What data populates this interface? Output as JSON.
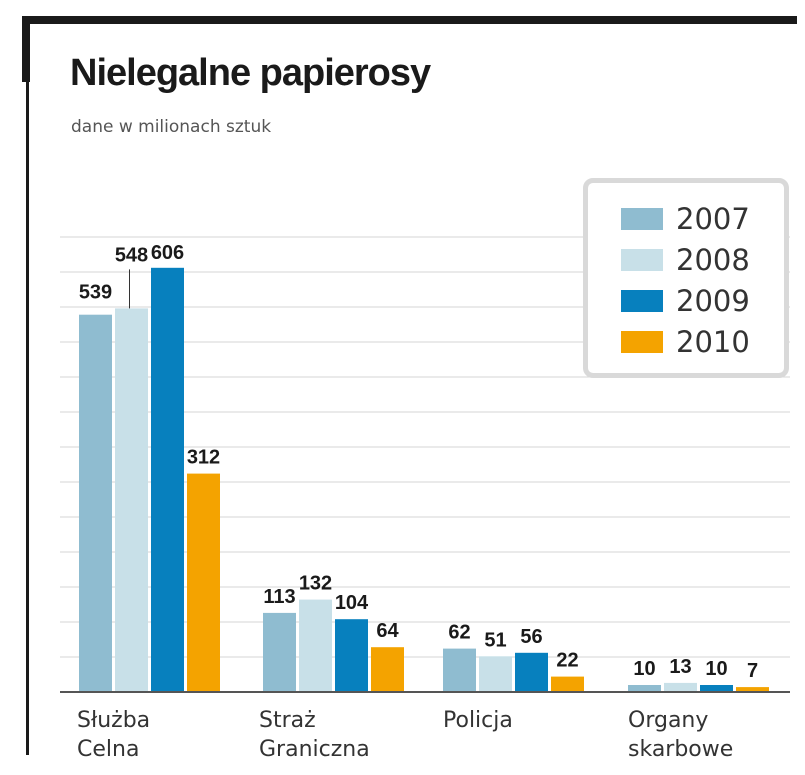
{
  "chart_data": {
    "type": "bar",
    "title": "Nielegalne papierosy",
    "subtitle": "dane w milionach sztuk",
    "categories": [
      "Służba\nCelna",
      "Straż\nGraniczna",
      "Policja",
      "Organy\nskarbowe"
    ],
    "series": [
      {
        "name": "2007",
        "color": "#8fbcd0",
        "values": [
          539,
          113,
          62,
          10
        ]
      },
      {
        "name": "2008",
        "color": "#c8e0e8",
        "values": [
          548,
          132,
          51,
          13
        ]
      },
      {
        "name": "2009",
        "color": "#0780be",
        "values": [
          606,
          104,
          56,
          10
        ]
      },
      {
        "name": "2010",
        "color": "#f4a300",
        "values": [
          312,
          64,
          22,
          7
        ]
      }
    ],
    "ylim": [
      0,
      700
    ],
    "grid": true,
    "legend_position": "top-right",
    "data_labels": true
  }
}
